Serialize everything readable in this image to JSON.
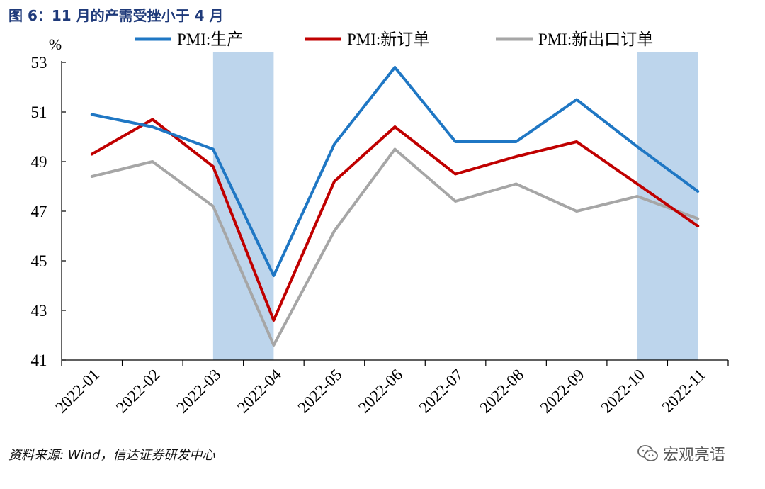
{
  "figure": {
    "title": "图 6：11 月的产需受挫小于 4 月",
    "source": "资料来源: Wind，信达证券研发中心",
    "watermark": "宏观亮语"
  },
  "chart_data": {
    "type": "line",
    "title": "",
    "ylabel": "%",
    "xlabel": "",
    "ylim": [
      41,
      53
    ],
    "yticks": [
      41,
      43,
      45,
      47,
      49,
      51,
      53
    ],
    "categories": [
      "2022-01",
      "2022-02",
      "2022-03",
      "2022-04",
      "2022-05",
      "2022-06",
      "2022-07",
      "2022-08",
      "2022-09",
      "2022-10",
      "2022-11"
    ],
    "shaded_ranges": [
      [
        "2022-04",
        "2022-04"
      ],
      [
        "2022-11",
        "2022-11"
      ]
    ],
    "shade_color": "#bdd5ec",
    "legend_position": "top",
    "series": [
      {
        "name": "PMI:生产",
        "color": "#1f77c4",
        "values": [
          50.9,
          50.4,
          49.5,
          44.4,
          49.7,
          52.8,
          49.8,
          49.8,
          51.5,
          49.6,
          47.8
        ]
      },
      {
        "name": "PMI:新订单",
        "color": "#c00000",
        "values": [
          49.3,
          50.7,
          48.8,
          42.6,
          48.2,
          50.4,
          48.5,
          49.2,
          49.8,
          48.1,
          46.4
        ]
      },
      {
        "name": "PMI:新出口订单",
        "color": "#a6a6a6",
        "values": [
          48.4,
          49.0,
          47.2,
          41.6,
          46.2,
          49.5,
          47.4,
          48.1,
          47.0,
          47.6,
          46.7
        ]
      }
    ]
  }
}
